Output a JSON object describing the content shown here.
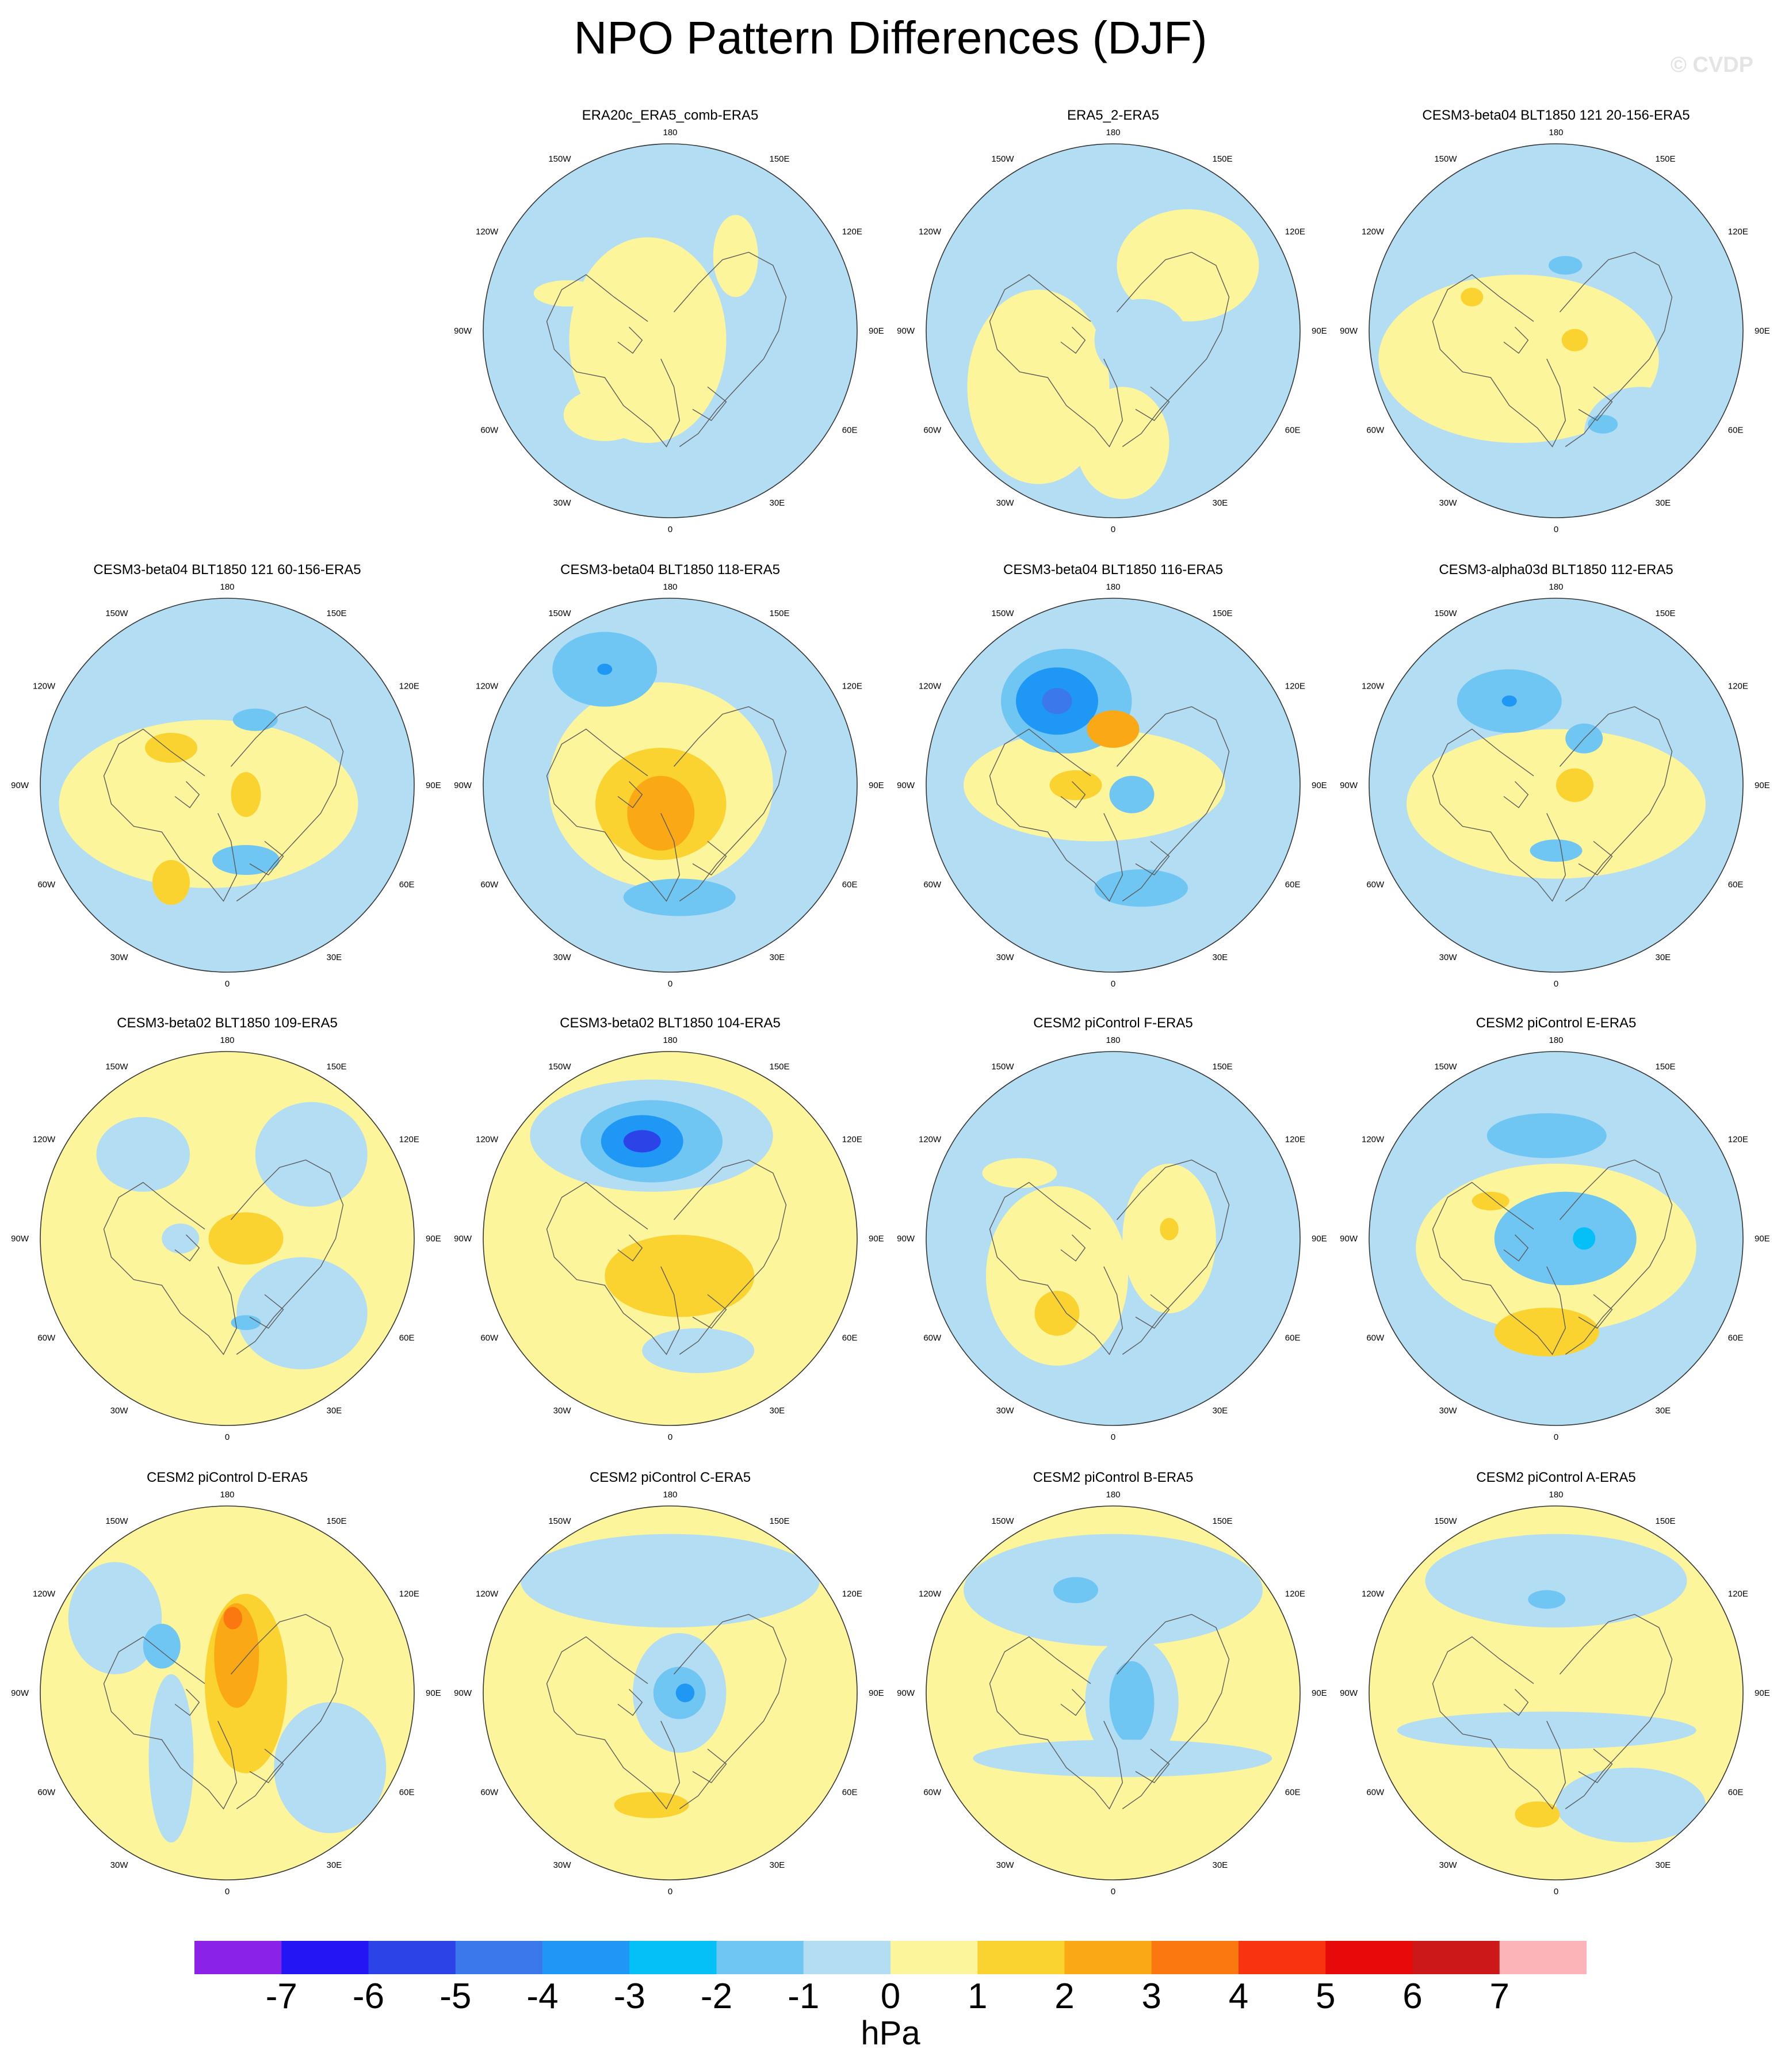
{
  "title": "NPO Pattern Differences (DJF)",
  "watermark": "© CVDP",
  "lon_labels": [
    "180",
    "150E",
    "120E",
    "90E",
    "60E",
    "30E",
    "0",
    "30W",
    "60W",
    "90W",
    "120W",
    "150W"
  ],
  "colorbar": {
    "units": "hPa",
    "ticks": [
      "-7",
      "-6",
      "-5",
      "-4",
      "-3",
      "-2",
      "-1",
      "0",
      "1",
      "2",
      "3",
      "4",
      "5",
      "6",
      "7"
    ],
    "colors": [
      "#8a22e8",
      "#2416f4",
      "#2c43e8",
      "#3a78ec",
      "#1f98f5",
      "#05c0f6",
      "#70c6f2",
      "#b3ddf2",
      "#fdf59b",
      "#fbd331",
      "#fba817",
      "#fb7810",
      "#f93210",
      "#e80a0a",
      "#cc1818",
      "#fdb4b8"
    ]
  },
  "panels": [
    {
      "title": "ERA20c_ERA5_comb-ERA5",
      "base": "#b3ddf2",
      "blobs": [
        {
          "dx": -0.12,
          "dy": 0.05,
          "rx": 0.42,
          "ry": 0.55,
          "c": "#fdf59b"
        },
        {
          "dx": 0.35,
          "dy": -0.4,
          "rx": 0.12,
          "ry": 0.22,
          "c": "#fdf59b"
        },
        {
          "dx": -0.55,
          "dy": -0.2,
          "rx": 0.18,
          "ry": 0.07,
          "c": "#fdf59b"
        },
        {
          "dx": -0.35,
          "dy": 0.45,
          "rx": 0.22,
          "ry": 0.14,
          "c": "#fdf59b"
        }
      ]
    },
    {
      "title": "ERA5_2-ERA5",
      "base": "#b3ddf2",
      "blobs": [
        {
          "dx": -0.4,
          "dy": 0.3,
          "rx": 0.38,
          "ry": 0.52,
          "c": "#fdf59b"
        },
        {
          "dx": 0.4,
          "dy": -0.35,
          "rx": 0.38,
          "ry": 0.3,
          "c": "#fdf59b"
        },
        {
          "dx": 0.05,
          "dy": 0.6,
          "rx": 0.25,
          "ry": 0.3,
          "c": "#fdf59b"
        },
        {
          "dx": 0.15,
          "dy": 0.05,
          "rx": 0.25,
          "ry": 0.22,
          "c": "#b3ddf2"
        }
      ]
    },
    {
      "title": "CESM3-beta04 BLT1850 121 20-156-ERA5",
      "base": "#b3ddf2",
      "blobs": [
        {
          "dx": -0.2,
          "dy": 0.15,
          "rx": 0.75,
          "ry": 0.45,
          "c": "#fdf59b"
        },
        {
          "dx": 0.45,
          "dy": 0.55,
          "rx": 0.3,
          "ry": 0.25,
          "c": "#b3ddf2"
        },
        {
          "dx": 0.1,
          "dy": 0.05,
          "rx": 0.07,
          "ry": 0.06,
          "c": "#fbd331"
        },
        {
          "dx": -0.45,
          "dy": -0.18,
          "rx": 0.06,
          "ry": 0.05,
          "c": "#fbd331"
        },
        {
          "dx": 0.25,
          "dy": 0.5,
          "rx": 0.08,
          "ry": 0.05,
          "c": "#70c6f2"
        },
        {
          "dx": 0.05,
          "dy": -0.35,
          "rx": 0.09,
          "ry": 0.05,
          "c": "#70c6f2"
        }
      ]
    },
    {
      "title": "CESM3-beta04 BLT1850 121 60-156-ERA5",
      "base": "#b3ddf2",
      "blobs": [
        {
          "dx": -0.1,
          "dy": 0.1,
          "rx": 0.8,
          "ry": 0.45,
          "c": "#fdf59b"
        },
        {
          "dx": -0.3,
          "dy": -0.2,
          "rx": 0.14,
          "ry": 0.08,
          "c": "#fbd331"
        },
        {
          "dx": 0.1,
          "dy": 0.05,
          "rx": 0.08,
          "ry": 0.12,
          "c": "#fbd331"
        },
        {
          "dx": -0.3,
          "dy": 0.52,
          "rx": 0.1,
          "ry": 0.12,
          "c": "#fbd331"
        },
        {
          "dx": 0.1,
          "dy": 0.4,
          "rx": 0.18,
          "ry": 0.08,
          "c": "#70c6f2"
        },
        {
          "dx": 0.15,
          "dy": -0.35,
          "rx": 0.12,
          "ry": 0.06,
          "c": "#70c6f2"
        }
      ]
    },
    {
      "title": "CESM3-beta04 BLT1850 118-ERA5",
      "base": "#b3ddf2",
      "blobs": [
        {
          "dx": -0.05,
          "dy": 0.0,
          "rx": 0.6,
          "ry": 0.55,
          "c": "#fdf59b"
        },
        {
          "dx": -0.05,
          "dy": 0.1,
          "rx": 0.35,
          "ry": 0.3,
          "c": "#fbd331"
        },
        {
          "dx": -0.05,
          "dy": 0.15,
          "rx": 0.18,
          "ry": 0.2,
          "c": "#fba817"
        },
        {
          "dx": -0.35,
          "dy": -0.62,
          "rx": 0.28,
          "ry": 0.2,
          "c": "#70c6f2"
        },
        {
          "dx": -0.35,
          "dy": -0.62,
          "rx": 0.04,
          "ry": 0.03,
          "c": "#1f98f5"
        },
        {
          "dx": 0.05,
          "dy": 0.6,
          "rx": 0.3,
          "ry": 0.1,
          "c": "#70c6f2"
        }
      ]
    },
    {
      "title": "CESM3-beta04 BLT1850 116-ERA5",
      "base": "#b3ddf2",
      "blobs": [
        {
          "dx": -0.1,
          "dy": 0.0,
          "rx": 0.7,
          "ry": 0.3,
          "c": "#fdf59b"
        },
        {
          "dx": -0.25,
          "dy": -0.45,
          "rx": 0.35,
          "ry": 0.28,
          "c": "#70c6f2"
        },
        {
          "dx": -0.3,
          "dy": -0.45,
          "rx": 0.22,
          "ry": 0.18,
          "c": "#1f98f5"
        },
        {
          "dx": -0.3,
          "dy": -0.45,
          "rx": 0.08,
          "ry": 0.07,
          "c": "#3a78ec"
        },
        {
          "dx": 0.0,
          "dy": -0.3,
          "rx": 0.14,
          "ry": 0.1,
          "c": "#fba817"
        },
        {
          "dx": -0.2,
          "dy": 0.0,
          "rx": 0.14,
          "ry": 0.08,
          "c": "#fbd331"
        },
        {
          "dx": 0.1,
          "dy": 0.05,
          "rx": 0.12,
          "ry": 0.1,
          "c": "#70c6f2"
        },
        {
          "dx": 0.15,
          "dy": 0.55,
          "rx": 0.25,
          "ry": 0.1,
          "c": "#70c6f2"
        }
      ]
    },
    {
      "title": "CESM3-alpha03d BLT1850 112-ERA5",
      "base": "#b3ddf2",
      "blobs": [
        {
          "dx": 0.0,
          "dy": 0.1,
          "rx": 0.8,
          "ry": 0.4,
          "c": "#fdf59b"
        },
        {
          "dx": -0.25,
          "dy": -0.45,
          "rx": 0.28,
          "ry": 0.17,
          "c": "#70c6f2"
        },
        {
          "dx": -0.25,
          "dy": -0.45,
          "rx": 0.04,
          "ry": 0.03,
          "c": "#1f98f5"
        },
        {
          "dx": 0.1,
          "dy": 0.0,
          "rx": 0.1,
          "ry": 0.09,
          "c": "#fbd331"
        },
        {
          "dx": 0.0,
          "dy": 0.35,
          "rx": 0.14,
          "ry": 0.06,
          "c": "#70c6f2"
        },
        {
          "dx": 0.15,
          "dy": -0.25,
          "rx": 0.1,
          "ry": 0.08,
          "c": "#70c6f2"
        }
      ]
    },
    {
      "title": "CESM3-beta02 BLT1850 109-ERA5",
      "base": "#fdf59b",
      "blobs": [
        {
          "dx": 0.4,
          "dy": 0.4,
          "rx": 0.35,
          "ry": 0.3,
          "c": "#b3ddf2"
        },
        {
          "dx": 0.45,
          "dy": -0.45,
          "rx": 0.3,
          "ry": 0.28,
          "c": "#b3ddf2"
        },
        {
          "dx": -0.45,
          "dy": -0.45,
          "rx": 0.25,
          "ry": 0.2,
          "c": "#b3ddf2"
        },
        {
          "dx": 0.1,
          "dy": 0.0,
          "rx": 0.2,
          "ry": 0.14,
          "c": "#fbd331"
        },
        {
          "dx": -0.25,
          "dy": 0.0,
          "rx": 0.1,
          "ry": 0.08,
          "c": "#b3ddf2"
        },
        {
          "dx": 0.1,
          "dy": 0.45,
          "rx": 0.08,
          "ry": 0.04,
          "c": "#70c6f2"
        }
      ]
    },
    {
      "title": "CESM3-beta02 BLT1850 104-ERA5",
      "base": "#fdf59b",
      "blobs": [
        {
          "dx": -0.1,
          "dy": -0.55,
          "rx": 0.65,
          "ry": 0.3,
          "c": "#b3ddf2"
        },
        {
          "dx": -0.1,
          "dy": -0.52,
          "rx": 0.38,
          "ry": 0.22,
          "c": "#70c6f2"
        },
        {
          "dx": -0.15,
          "dy": -0.52,
          "rx": 0.22,
          "ry": 0.14,
          "c": "#1f98f5"
        },
        {
          "dx": -0.15,
          "dy": -0.52,
          "rx": 0.1,
          "ry": 0.06,
          "c": "#2c43e8"
        },
        {
          "dx": 0.05,
          "dy": 0.2,
          "rx": 0.4,
          "ry": 0.22,
          "c": "#fbd331"
        },
        {
          "dx": 0.15,
          "dy": 0.6,
          "rx": 0.3,
          "ry": 0.12,
          "c": "#b3ddf2"
        }
      ]
    },
    {
      "title": "CESM2 piControl F-ERA5",
      "base": "#b3ddf2",
      "blobs": [
        {
          "dx": -0.3,
          "dy": 0.2,
          "rx": 0.38,
          "ry": 0.48,
          "c": "#fdf59b"
        },
        {
          "dx": 0.3,
          "dy": 0.0,
          "rx": 0.25,
          "ry": 0.4,
          "c": "#fdf59b"
        },
        {
          "dx": -0.3,
          "dy": 0.4,
          "rx": 0.12,
          "ry": 0.12,
          "c": "#fbd331"
        },
        {
          "dx": 0.3,
          "dy": -0.05,
          "rx": 0.05,
          "ry": 0.06,
          "c": "#fbd331"
        },
        {
          "dx": -0.5,
          "dy": -0.35,
          "rx": 0.2,
          "ry": 0.08,
          "c": "#fdf59b"
        }
      ]
    },
    {
      "title": "CESM2 piControl E-ERA5",
      "base": "#b3ddf2",
      "blobs": [
        {
          "dx": 0.0,
          "dy": 0.05,
          "rx": 0.75,
          "ry": 0.45,
          "c": "#fdf59b"
        },
        {
          "dx": 0.05,
          "dy": 0.0,
          "rx": 0.38,
          "ry": 0.25,
          "c": "#70c6f2"
        },
        {
          "dx": 0.15,
          "dy": 0.0,
          "rx": 0.06,
          "ry": 0.06,
          "c": "#05c0f6"
        },
        {
          "dx": -0.05,
          "dy": -0.55,
          "rx": 0.32,
          "ry": 0.12,
          "c": "#70c6f2"
        },
        {
          "dx": -0.05,
          "dy": 0.5,
          "rx": 0.28,
          "ry": 0.13,
          "c": "#fbd331"
        },
        {
          "dx": -0.35,
          "dy": -0.2,
          "rx": 0.1,
          "ry": 0.05,
          "c": "#fbd331"
        }
      ]
    },
    {
      "title": "CESM2 piControl D-ERA5",
      "base": "#fdf59b",
      "blobs": [
        {
          "dx": 0.55,
          "dy": 0.4,
          "rx": 0.3,
          "ry": 0.35,
          "c": "#b3ddf2"
        },
        {
          "dx": -0.6,
          "dy": -0.4,
          "rx": 0.25,
          "ry": 0.3,
          "c": "#b3ddf2"
        },
        {
          "dx": -0.3,
          "dy": 0.35,
          "rx": 0.12,
          "ry": 0.45,
          "c": "#b3ddf2"
        },
        {
          "dx": -0.35,
          "dy": -0.25,
          "rx": 0.1,
          "ry": 0.12,
          "c": "#70c6f2"
        },
        {
          "dx": 0.1,
          "dy": -0.05,
          "rx": 0.22,
          "ry": 0.48,
          "c": "#fbd331"
        },
        {
          "dx": 0.05,
          "dy": -0.2,
          "rx": 0.12,
          "ry": 0.28,
          "c": "#fba817"
        },
        {
          "dx": 0.03,
          "dy": -0.4,
          "rx": 0.05,
          "ry": 0.06,
          "c": "#fb7810"
        }
      ]
    },
    {
      "title": "CESM2 piControl C-ERA5",
      "base": "#fdf59b",
      "blobs": [
        {
          "dx": 0.0,
          "dy": -0.6,
          "rx": 0.8,
          "ry": 0.25,
          "c": "#b3ddf2"
        },
        {
          "dx": 0.05,
          "dy": 0.0,
          "rx": 0.25,
          "ry": 0.32,
          "c": "#b3ddf2"
        },
        {
          "dx": 0.05,
          "dy": 0.0,
          "rx": 0.14,
          "ry": 0.14,
          "c": "#70c6f2"
        },
        {
          "dx": 0.08,
          "dy": 0.0,
          "rx": 0.05,
          "ry": 0.05,
          "c": "#1f98f5"
        },
        {
          "dx": -0.1,
          "dy": 0.6,
          "rx": 0.2,
          "ry": 0.07,
          "c": "#fbd331"
        }
      ]
    },
    {
      "title": "CESM2 piControl B-ERA5",
      "base": "#fdf59b",
      "blobs": [
        {
          "dx": 0.0,
          "dy": -0.55,
          "rx": 0.8,
          "ry": 0.3,
          "c": "#b3ddf2"
        },
        {
          "dx": 0.1,
          "dy": 0.05,
          "rx": 0.25,
          "ry": 0.35,
          "c": "#b3ddf2"
        },
        {
          "dx": 0.1,
          "dy": 0.05,
          "rx": 0.12,
          "ry": 0.22,
          "c": "#70c6f2"
        },
        {
          "dx": -0.2,
          "dy": -0.55,
          "rx": 0.12,
          "ry": 0.07,
          "c": "#70c6f2"
        },
        {
          "dx": 0.05,
          "dy": 0.35,
          "rx": 0.8,
          "ry": 0.1,
          "c": "#b3ddf2"
        }
      ]
    },
    {
      "title": "CESM2 piControl A-ERA5",
      "base": "#fdf59b",
      "blobs": [
        {
          "dx": 0.0,
          "dy": -0.6,
          "rx": 0.7,
          "ry": 0.25,
          "c": "#b3ddf2"
        },
        {
          "dx": -0.05,
          "dy": 0.2,
          "rx": 0.8,
          "ry": 0.1,
          "c": "#b3ddf2"
        },
        {
          "dx": 0.4,
          "dy": 0.6,
          "rx": 0.4,
          "ry": 0.2,
          "c": "#b3ddf2"
        },
        {
          "dx": -0.05,
          "dy": -0.5,
          "rx": 0.1,
          "ry": 0.05,
          "c": "#70c6f2"
        },
        {
          "dx": -0.1,
          "dy": 0.65,
          "rx": 0.12,
          "ry": 0.07,
          "c": "#fbd331"
        }
      ]
    }
  ]
}
